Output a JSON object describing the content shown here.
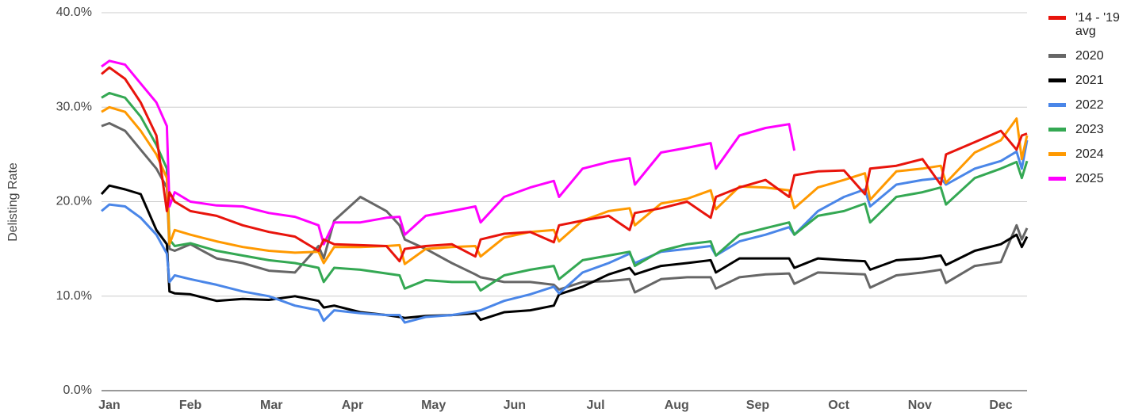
{
  "chart_data": {
    "type": "line",
    "y_label": "Delisting Rate",
    "x": [
      1,
      4,
      10,
      16,
      22,
      26,
      27,
      29,
      35,
      45,
      55,
      65,
      75,
      84,
      86,
      90,
      100,
      110,
      115,
      117,
      125,
      135,
      144,
      146,
      155,
      165,
      174,
      176,
      185,
      195,
      203,
      205,
      215,
      225,
      234,
      236,
      245,
      255,
      264,
      266,
      275,
      285,
      293,
      295,
      305,
      315,
      322,
      324,
      335,
      345,
      351,
      353,
      355
    ],
    "xlim": [
      1,
      355
    ],
    "xticks": [
      {
        "value": 4,
        "label": "Jan"
      },
      {
        "value": 35,
        "label": "Feb"
      },
      {
        "value": 66,
        "label": "Mar"
      },
      {
        "value": 97,
        "label": "Apr"
      },
      {
        "value": 128,
        "label": "May"
      },
      {
        "value": 159,
        "label": "Jun"
      },
      {
        "value": 190,
        "label": "Jul"
      },
      {
        "value": 221,
        "label": "Aug"
      },
      {
        "value": 252,
        "label": "Sep"
      },
      {
        "value": 283,
        "label": "Oct"
      },
      {
        "value": 314,
        "label": "Nov"
      },
      {
        "value": 345,
        "label": "Dec"
      }
    ],
    "ylim": [
      0,
      40
    ],
    "yticks": [
      {
        "value": 0,
        "label": "0.0%"
      },
      {
        "value": 10,
        "label": "10.0%"
      },
      {
        "value": 20,
        "label": "20.0%"
      },
      {
        "value": 30,
        "label": "30.0%"
      },
      {
        "value": 40,
        "label": "40.0%"
      }
    ],
    "grid": true,
    "legend": "right",
    "series": [
      {
        "name": "2020",
        "color": "#666666",
        "values": [
          28,
          28.3,
          27.5,
          25.5,
          23.5,
          21.5,
          15,
          14.8,
          15.5,
          14,
          13.5,
          12.7,
          12.5,
          15.3,
          14,
          18,
          20.5,
          19,
          17.5,
          16,
          15,
          13.5,
          12.3,
          12,
          11.5,
          11.5,
          11.2,
          10.7,
          11.5,
          11.6,
          11.8,
          10.4,
          11.8,
          12,
          12,
          10.8,
          12,
          12.3,
          12.4,
          11.3,
          12.5,
          12.4,
          12.3,
          10.9,
          12.2,
          12.5,
          12.8,
          11.4,
          13.2,
          13.6,
          17.5,
          16,
          17.2
        ]
      },
      {
        "name": "2021",
        "color": "#000000",
        "values": [
          20.8,
          21.7,
          21.3,
          20.8,
          17,
          15.5,
          10.5,
          10.3,
          10.2,
          9.5,
          9.7,
          9.6,
          10,
          9.5,
          8.8,
          9,
          8.3,
          8,
          7.8,
          7.7,
          7.9,
          8,
          8.2,
          7.5,
          8.3,
          8.5,
          9,
          10.2,
          11,
          12.3,
          13,
          12.3,
          13.2,
          13.5,
          13.8,
          12.5,
          14,
          14,
          14,
          13,
          14,
          13.8,
          13.7,
          12.8,
          13.8,
          14,
          14.3,
          13.3,
          14.8,
          15.5,
          16.5,
          15.2,
          16.3
        ]
      },
      {
        "name": "2022",
        "color": "#4a86e8",
        "values": [
          19,
          19.7,
          19.5,
          18.3,
          16.5,
          14.5,
          11.5,
          12.2,
          11.8,
          11.2,
          10.5,
          10,
          9,
          8.5,
          7.4,
          8.5,
          8.2,
          8,
          8,
          7.2,
          7.8,
          8,
          8.4,
          8.5,
          9.5,
          10.2,
          11,
          10.3,
          12.5,
          13.5,
          14.5,
          13.5,
          14.7,
          15,
          15.3,
          14.3,
          15.8,
          16.5,
          17.3,
          16.5,
          19,
          20.5,
          21.3,
          19.5,
          21.8,
          22.3,
          22.5,
          21.8,
          23.5,
          24.3,
          25.3,
          23.5,
          26.5
        ]
      },
      {
        "name": "2023",
        "color": "#34a853",
        "values": [
          31,
          31.5,
          31,
          29,
          26,
          23.5,
          16,
          15.3,
          15.6,
          14.8,
          14.3,
          13.8,
          13.5,
          13,
          11.5,
          13,
          12.8,
          12.4,
          12.2,
          10.8,
          11.7,
          11.5,
          11.5,
          10.6,
          12.2,
          12.8,
          13.2,
          11.8,
          13.8,
          14.3,
          14.7,
          13.2,
          14.8,
          15.5,
          15.8,
          14.3,
          16.5,
          17.2,
          17.8,
          16.5,
          18.5,
          19,
          19.8,
          17.8,
          20.5,
          21,
          21.5,
          19.7,
          22.5,
          23.5,
          24.2,
          22.5,
          24.3
        ]
      },
      {
        "name": "2024",
        "color": "#ff9900",
        "values": [
          29.5,
          30,
          29.5,
          27.5,
          25,
          22.5,
          15.5,
          17,
          16.5,
          15.8,
          15.2,
          14.8,
          14.6,
          14.7,
          13.5,
          15.2,
          15.2,
          15.3,
          15.4,
          13.4,
          15,
          15.2,
          15.3,
          14.2,
          16.2,
          16.8,
          17,
          15.8,
          18,
          19,
          19.3,
          17.5,
          19.8,
          20.3,
          21.2,
          19.2,
          21.6,
          21.5,
          21.2,
          19.3,
          21.5,
          22.3,
          23,
          20.2,
          23.2,
          23.5,
          23.8,
          22,
          25.2,
          26.5,
          28.8,
          24.5,
          27
        ]
      },
      {
        "name": "2025",
        "color": "#ff00ff",
        "values": [
          34.3,
          34.9,
          34.5,
          32.5,
          30.5,
          28,
          19.5,
          21,
          20,
          19.6,
          19.5,
          18.8,
          18.4,
          17.5,
          15.5,
          17.8,
          17.8,
          18.3,
          18.4,
          16.5,
          18.5,
          19,
          19.5,
          17.8,
          20.5,
          21.5,
          22.2,
          20.5,
          23.5,
          24.2,
          24.6,
          21.8,
          25.2,
          25.7,
          26.2,
          23.5,
          27,
          27.8,
          28.2,
          25.4,
          null,
          null,
          null,
          null,
          null,
          null,
          null,
          null,
          null,
          null,
          null,
          null,
          null
        ]
      },
      {
        "name": "'14 - '19 avg",
        "color": "#e8140c",
        "values": [
          33.5,
          34.2,
          33,
          30.5,
          27,
          19,
          21,
          20,
          19,
          18.5,
          17.5,
          16.8,
          16.3,
          14.8,
          16,
          15.5,
          15.4,
          15.3,
          13.7,
          15,
          15.3,
          15.5,
          14.2,
          16,
          16.6,
          16.8,
          15.7,
          17.5,
          18,
          18.5,
          17,
          18.8,
          19.3,
          20,
          18.3,
          20.5,
          21.5,
          22.3,
          20.5,
          22.8,
          23.2,
          23.3,
          20.8,
          23.5,
          23.8,
          24.5,
          21.8,
          25,
          26.3,
          27.5,
          25.5,
          27,
          27.2
        ]
      }
    ]
  }
}
